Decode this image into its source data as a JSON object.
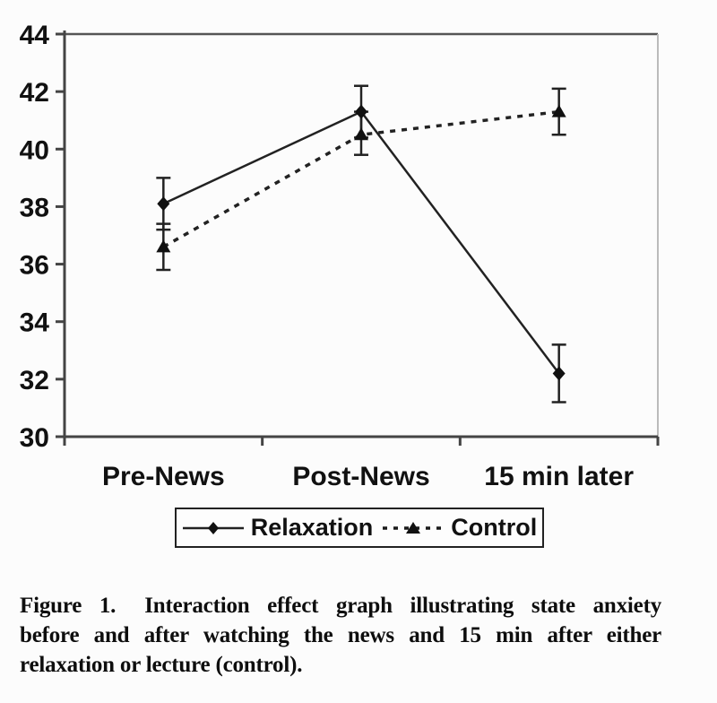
{
  "figure": {
    "caption": {
      "line1": "Figure 1.  Interaction effect graph illustrating state anxiety",
      "line2": "before and after watching the news and 15 min after either",
      "line3": "relaxation or lecture (control)."
    }
  },
  "chart_data": {
    "type": "line",
    "title": "",
    "xlabel": "",
    "ylabel": "",
    "categories": [
      "Pre-News",
      "Post-News",
      "15 min later"
    ],
    "ylim": [
      30,
      44
    ],
    "yticks": [
      30,
      32,
      34,
      36,
      38,
      40,
      42,
      44
    ],
    "grid": false,
    "legend_position": "bottom-outside-boxed",
    "error_bars": true,
    "series": [
      {
        "name": "Relaxation",
        "marker": "diamond",
        "line_style": "solid",
        "values": [
          38.1,
          41.3,
          32.2
        ],
        "error_low": [
          37.2,
          40.4,
          31.2
        ],
        "error_high": [
          39.0,
          42.2,
          33.2
        ]
      },
      {
        "name": "Control",
        "marker": "triangle",
        "line_style": "dashed",
        "values": [
          36.6,
          40.5,
          41.3
        ],
        "error_low": [
          35.8,
          39.8,
          40.5
        ],
        "error_high": [
          37.4,
          41.3,
          42.1
        ]
      }
    ],
    "colors": {
      "ink": "#1a1a1a",
      "axis": "#444444",
      "frame_right": "#bbbbbb",
      "background": "#fcfcfc"
    }
  }
}
